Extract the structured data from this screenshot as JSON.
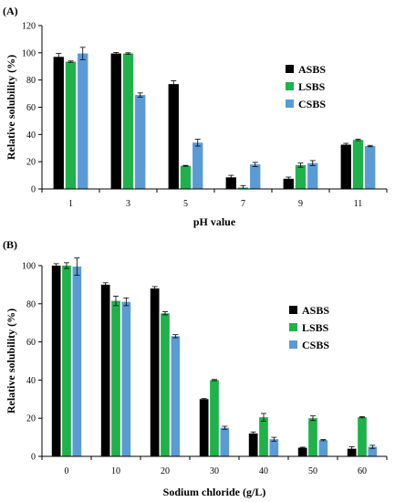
{
  "chart_data": [
    {
      "type": "bar",
      "panel_label": "(A)",
      "xlabel": "pH value",
      "ylabel": "Relative solubility (%)",
      "ylim": [
        0,
        120
      ],
      "yticks": [
        0,
        20,
        40,
        60,
        80,
        100,
        120
      ],
      "legend_position": "right",
      "categories": [
        "1",
        "3",
        "5",
        "7",
        "9",
        "11"
      ],
      "series": [
        {
          "name": "ASBS",
          "color": "#000000",
          "values": [
            97,
            99.5,
            77,
            8.5,
            7.5,
            32.5
          ],
          "errors": [
            2.5,
            0.8,
            2.5,
            1.5,
            1.2,
            1.0
          ]
        },
        {
          "name": "LSBS",
          "color": "#1fb24a",
          "values": [
            93.5,
            99.5,
            17,
            1,
            17.5,
            36
          ],
          "errors": [
            0.5,
            0.5,
            0.3,
            1.5,
            1.5,
            0.5
          ]
        },
        {
          "name": "CSBS",
          "color": "#5b9bd5",
          "values": [
            99.5,
            69,
            34,
            18,
            19,
            31.5
          ],
          "errors": [
            4.5,
            1.5,
            2.5,
            1.5,
            1.8,
            0.5
          ]
        }
      ]
    },
    {
      "type": "bar",
      "panel_label": "(B)",
      "xlabel": "Sodium chloride (g/L)",
      "ylabel": "Relative solubility (%)",
      "ylim": [
        0,
        100
      ],
      "yticks": [
        0,
        20,
        40,
        60,
        80,
        100
      ],
      "legend_position": "right",
      "categories": [
        "0",
        "10",
        "20",
        "30",
        "40",
        "50",
        "60"
      ],
      "series": [
        {
          "name": "ASBS",
          "color": "#000000",
          "values": [
            100,
            90,
            88,
            30,
            12,
            4.5,
            4
          ],
          "errors": [
            1.0,
            1.0,
            1.0,
            0.3,
            0.8,
            0.3,
            1.0
          ]
        },
        {
          "name": "LSBS",
          "color": "#1fb24a",
          "values": [
            100,
            81.5,
            75,
            40,
            20.5,
            20,
            20.5
          ],
          "errors": [
            1.5,
            2.5,
            0.8,
            0.3,
            2.0,
            1.2,
            0.3
          ]
        },
        {
          "name": "CSBS",
          "color": "#5b9bd5",
          "values": [
            99.5,
            81,
            63,
            15,
            9,
            8.5,
            5
          ],
          "errors": [
            4.5,
            2.0,
            0.8,
            0.8,
            1.0,
            0.3,
            0.8
          ]
        }
      ]
    }
  ]
}
